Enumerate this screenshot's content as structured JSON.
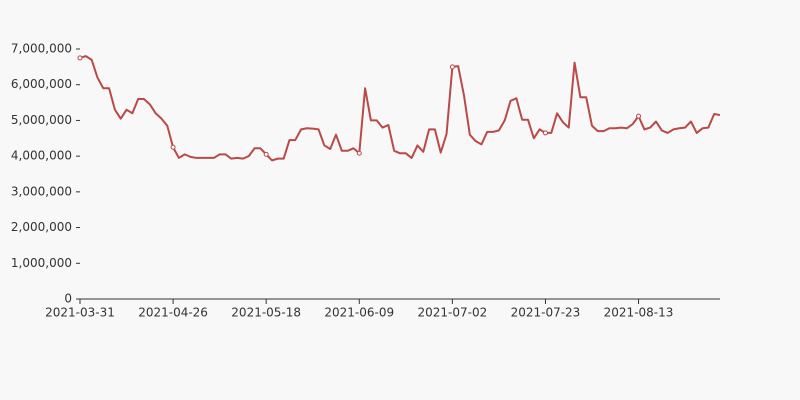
{
  "chart_data": {
    "type": "line",
    "categories": [
      "2021-03-31",
      null,
      null,
      null,
      null,
      null,
      null,
      null,
      null,
      null,
      null,
      null,
      null,
      null,
      null,
      null,
      "2021-04-26",
      null,
      null,
      null,
      null,
      null,
      null,
      null,
      null,
      null,
      null,
      null,
      null,
      null,
      null,
      null,
      "2021-05-18",
      null,
      null,
      null,
      null,
      null,
      null,
      null,
      null,
      null,
      null,
      null,
      null,
      null,
      null,
      null,
      "2021-06-09",
      null,
      null,
      null,
      null,
      null,
      null,
      null,
      null,
      null,
      null,
      null,
      null,
      null,
      null,
      null,
      "2021-07-02",
      null,
      null,
      null,
      null,
      null,
      null,
      null,
      null,
      null,
      null,
      null,
      null,
      null,
      null,
      null,
      "2021-07-23",
      null,
      null,
      null,
      null,
      null,
      null,
      null,
      null,
      null,
      null,
      null,
      null,
      null,
      null,
      null,
      "2021-08-13",
      null,
      null,
      null,
      null,
      null,
      null,
      null,
      null,
      null,
      null,
      null,
      null,
      null,
      null
    ],
    "series": [
      {
        "color": "#b94a48",
        "values": [
          6750000,
          6800000,
          6700000,
          6200000,
          5900000,
          5900000,
          5300000,
          5050000,
          5300000,
          5200000,
          5600000,
          5600000,
          5450000,
          5200000,
          5050000,
          4850000,
          4250000,
          3950000,
          4050000,
          3980000,
          3950000,
          3950000,
          3950000,
          3950000,
          4050000,
          4050000,
          3930000,
          3950000,
          3930000,
          4000000,
          4220000,
          4220000,
          4050000,
          3880000,
          3930000,
          3930000,
          4450000,
          4450000,
          4750000,
          4780000,
          4770000,
          4750000,
          4300000,
          4200000,
          4600000,
          4150000,
          4150000,
          4220000,
          4080000,
          5900000,
          5000000,
          5000000,
          4800000,
          4870000,
          4150000,
          4080000,
          4080000,
          3950000,
          4300000,
          4120000,
          4750000,
          4750000,
          4100000,
          4620000,
          6500000,
          6520000,
          5700000,
          4600000,
          4420000,
          4330000,
          4680000,
          4680000,
          4720000,
          5000000,
          5550000,
          5620000,
          5020000,
          5020000,
          4500000,
          4750000,
          4650000,
          4650000,
          5200000,
          4950000,
          4800000,
          6620000,
          5650000,
          5650000,
          4850000,
          4700000,
          4700000,
          4780000,
          4780000,
          4800000,
          4780000,
          4900000,
          5120000,
          4750000,
          4800000,
          4970000,
          4720000,
          4650000,
          4750000,
          4780000,
          4800000,
          4970000,
          4650000,
          4780000,
          4800000,
          5180000,
          5150000
        ]
      }
    ],
    "ylim": [
      0,
      7000000
    ],
    "yticks": [
      0,
      {
        "value": 1000000,
        "label": "1,000,000"
      },
      {
        "value": 2000000,
        "label": "2,000,000"
      },
      {
        "value": 3000000,
        "label": "3,000,000"
      },
      {
        "value": 4000000,
        "label": "4,000,000"
      },
      {
        "value": 5000000,
        "label": "5,000,000"
      },
      {
        "value": 6000000,
        "label": "6,000,000"
      },
      {
        "value": 7000000,
        "label": "7,000,000"
      }
    ]
  }
}
